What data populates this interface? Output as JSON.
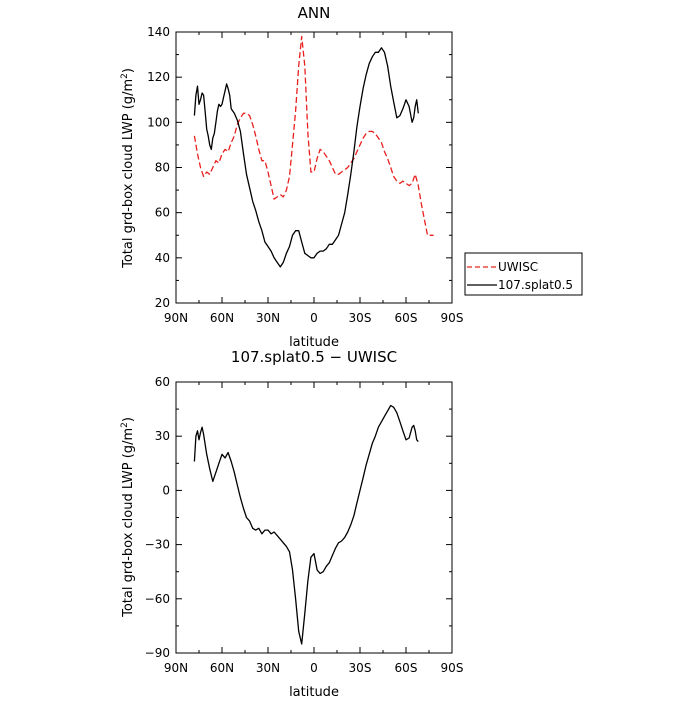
{
  "chart_data": [
    {
      "type": "line",
      "title": "ANN",
      "xlabel": "latitude",
      "ylabel": "Total grd-box cloud LWP (g/m²)",
      "x_range": [
        90,
        -90
      ],
      "x_ticks": [
        90,
        60,
        30,
        0,
        -30,
        -60,
        -90
      ],
      "x_tick_labels": [
        "90N",
        "60N",
        "30N",
        "0",
        "30S",
        "60S",
        "90S"
      ],
      "ylim": [
        20,
        140
      ],
      "y_ticks": [
        20,
        40,
        60,
        80,
        100,
        120,
        140
      ],
      "legend_position": "right",
      "series": [
        {
          "name": "UWISC",
          "color": "#e8201e",
          "dash": "dashed",
          "x": [
            78,
            76,
            74,
            72,
            70,
            68,
            66,
            64,
            62,
            60,
            58,
            56,
            54,
            52,
            50,
            48,
            46,
            44,
            42,
            40,
            38,
            36,
            34,
            32,
            30,
            28,
            26,
            24,
            22,
            20,
            18,
            16,
            14,
            12,
            10,
            8,
            6,
            4,
            2,
            0,
            -2,
            -4,
            -6,
            -8,
            -10,
            -12,
            -14,
            -16,
            -18,
            -20,
            -22,
            -24,
            -26,
            -28,
            -30,
            -32,
            -34,
            -36,
            -38,
            -40,
            -42,
            -44,
            -46,
            -48,
            -50,
            -52,
            -54,
            -56,
            -58,
            -60,
            -62,
            -64,
            -66,
            -68,
            -70,
            -72,
            -74,
            -76,
            -78
          ],
          "values": [
            94,
            86,
            80,
            76,
            78,
            77,
            80,
            83,
            82,
            86,
            88,
            87,
            91,
            94,
            99,
            102,
            104,
            104,
            103,
            99,
            94,
            88,
            83,
            83,
            78,
            72,
            66,
            67,
            68,
            67,
            70,
            76,
            90,
            105,
            125,
            138,
            125,
            95,
            78,
            78,
            84,
            88,
            87,
            85,
            83,
            80,
            77,
            77,
            78,
            79,
            80,
            82,
            84,
            87,
            90,
            93,
            95,
            96,
            96,
            95,
            93,
            91,
            87,
            84,
            80,
            76,
            74,
            73,
            74,
            73,
            72,
            73,
            77,
            72,
            64,
            57,
            50,
            50,
            50
          ]
        },
        {
          "name": "107.splat0.5",
          "color": "#000000",
          "dash": "solid",
          "x": [
            78,
            77,
            76,
            75,
            74,
            73,
            72,
            71,
            70,
            69,
            68,
            67,
            66,
            65,
            64,
            63,
            62,
            61,
            60,
            59,
            58,
            57,
            56,
            55,
            54,
            52,
            50,
            48,
            46,
            44,
            42,
            40,
            38,
            36,
            34,
            32,
            30,
            28,
            26,
            24,
            22,
            20,
            18,
            16,
            14,
            12,
            10,
            8,
            6,
            4,
            2,
            0,
            -2,
            -4,
            -6,
            -8,
            -10,
            -12,
            -14,
            -16,
            -18,
            -20,
            -22,
            -24,
            -26,
            -28,
            -30,
            -32,
            -34,
            -36,
            -38,
            -40,
            -42,
            -44,
            -46,
            -48,
            -50,
            -52,
            -54,
            -56,
            -58,
            -60,
            -62,
            -64,
            -65,
            -66,
            -67,
            -68
          ],
          "values": [
            103,
            112,
            116,
            108,
            110,
            113,
            112,
            105,
            97,
            94,
            90,
            88,
            93,
            95,
            100,
            105,
            108,
            107,
            108,
            111,
            114,
            117,
            115,
            112,
            106,
            104,
            101,
            96,
            86,
            77,
            71,
            65,
            61,
            56,
            52,
            47,
            45,
            43,
            40,
            38,
            36,
            38,
            42,
            45,
            50,
            52,
            52,
            47,
            42,
            41,
            40,
            40,
            42,
            43,
            43,
            44,
            46,
            46,
            48,
            50,
            55,
            60,
            68,
            77,
            87,
            98,
            107,
            115,
            121,
            126,
            129,
            131,
            131,
            133,
            131,
            125,
            116,
            109,
            102,
            103,
            106,
            110,
            107,
            100,
            102,
            107,
            110,
            104
          ]
        }
      ]
    },
    {
      "type": "line",
      "title": "107.splat0.5 − UWISC",
      "xlabel": "latitude",
      "ylabel": "Total grd-box cloud LWP (g/m²)",
      "x_range": [
        90,
        -90
      ],
      "x_ticks": [
        90,
        60,
        30,
        0,
        -30,
        -60,
        -90
      ],
      "x_tick_labels": [
        "90N",
        "60N",
        "30N",
        "0",
        "30S",
        "60S",
        "90S"
      ],
      "ylim": [
        -90,
        60
      ],
      "y_ticks": [
        -90,
        -60,
        -30,
        0,
        30,
        60
      ],
      "series": [
        {
          "color": "#000000",
          "dash": "solid",
          "x": [
            78,
            77,
            76,
            75,
            74,
            73,
            72,
            70,
            68,
            66,
            64,
            62,
            60,
            58,
            56,
            54,
            52,
            50,
            48,
            46,
            44,
            42,
            40,
            38,
            36,
            34,
            32,
            30,
            28,
            26,
            24,
            22,
            20,
            18,
            16,
            14,
            12,
            10,
            8,
            6,
            4,
            2,
            0,
            -2,
            -4,
            -6,
            -8,
            -10,
            -12,
            -14,
            -16,
            -18,
            -20,
            -22,
            -24,
            -26,
            -28,
            -30,
            -32,
            -34,
            -36,
            -38,
            -40,
            -42,
            -44,
            -46,
            -48,
            -50,
            -52,
            -54,
            -56,
            -58,
            -60,
            -62,
            -64,
            -65,
            -66,
            -67,
            -68
          ],
          "values": [
            16,
            30,
            33,
            28,
            32,
            35,
            31,
            20,
            12,
            5,
            10,
            15,
            20,
            18,
            21,
            16,
            10,
            3,
            -4,
            -10,
            -15,
            -17,
            -21,
            -22,
            -21,
            -24,
            -22,
            -22,
            -24,
            -23,
            -25,
            -27,
            -29,
            -31,
            -34,
            -44,
            -60,
            -78,
            -85,
            -68,
            -50,
            -37,
            -35,
            -44,
            -46,
            -45,
            -42,
            -40,
            -36,
            -32,
            -29,
            -28,
            -26,
            -23,
            -19,
            -14,
            -7,
            0,
            7,
            14,
            20,
            26,
            30,
            35,
            38,
            41,
            44,
            47,
            46,
            43,
            38,
            33,
            28,
            29,
            35,
            36,
            33,
            28,
            27
          ]
        }
      ]
    }
  ]
}
